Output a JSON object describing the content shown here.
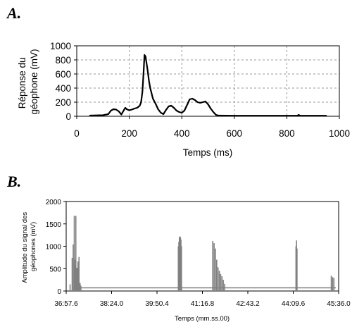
{
  "panels": [
    {
      "label": "A."
    },
    {
      "label": "B."
    }
  ],
  "chart_data": [
    {
      "type": "line",
      "title": "",
      "xlabel": "Temps (ms)",
      "ylabel": "Réponse du géophone (mV)",
      "ylabel_lines": [
        "Réponse du",
        "géophone (mV)"
      ],
      "xlim": [
        0,
        1000
      ],
      "ylim": [
        0,
        1000
      ],
      "xticks": [
        "0",
        "200",
        "400",
        "600",
        "800",
        "1000"
      ],
      "yticks": [
        "0",
        "200",
        "400",
        "600",
        "800",
        "1000"
      ],
      "grid": true,
      "color": "#000000",
      "x": [
        50,
        100,
        120,
        130,
        140,
        150,
        160,
        170,
        180,
        185,
        190,
        200,
        210,
        220,
        230,
        240,
        245,
        250,
        255,
        258,
        262,
        266,
        270,
        275,
        280,
        290,
        300,
        310,
        320,
        330,
        340,
        350,
        360,
        370,
        380,
        390,
        400,
        410,
        420,
        430,
        440,
        450,
        460,
        470,
        480,
        490,
        500,
        510,
        520,
        530,
        540,
        600,
        700,
        800,
        840,
        845,
        850,
        900,
        950
      ],
      "y": [
        10,
        15,
        30,
        80,
        100,
        95,
        70,
        25,
        90,
        120,
        100,
        85,
        95,
        110,
        120,
        150,
        200,
        350,
        650,
        870,
        850,
        750,
        650,
        500,
        400,
        250,
        180,
        100,
        50,
        30,
        90,
        140,
        150,
        120,
        80,
        60,
        50,
        80,
        160,
        240,
        250,
        230,
        200,
        190,
        200,
        210,
        170,
        110,
        60,
        20,
        10,
        8,
        8,
        8,
        8,
        20,
        8,
        8,
        8
      ]
    },
    {
      "type": "bar",
      "title": "",
      "xlabel": "Temps (mm.ss.00)",
      "ylabel": "Amplitude du signal des géophones (mV)",
      "ylabel_lines": [
        "Amplitude du signal des",
        "géophones (mV)"
      ],
      "xlim": [
        "36:57.6",
        "45:36.0"
      ],
      "ylim": [
        0,
        2000
      ],
      "xticks": [
        "36:57.6",
        "38:24.0",
        "39:50.4",
        "41:16.8",
        "42:43.2",
        "44:09.6",
        "45:36.0"
      ],
      "yticks": [
        "0",
        "500",
        "1000",
        "1500",
        "2000"
      ],
      "grid": false,
      "color": "#808080",
      "baseline": 70,
      "x": [
        "37:05.0",
        "37:09.0",
        "37:11.0",
        "37:13.0",
        "37:14.5",
        "37:16.0",
        "37:18.0",
        "37:20.0",
        "37:22.0",
        "37:24.0",
        "37:25.5",
        "40:31.0",
        "40:32.0",
        "40:33.0",
        "40:34.0",
        "40:35.0",
        "40:36.0",
        "40:37.0",
        "41:36.5",
        "41:39.0",
        "41:41.5",
        "41:44.0",
        "41:46.5",
        "41:49.0",
        "41:51.5",
        "41:54.0",
        "41:56.5",
        "41:59.0",
        "44:14.8",
        "44:15.8",
        "44:16.8",
        "45:22.0",
        "45:24.5",
        "45:27.0"
      ],
      "values": [
        150,
        740,
        1040,
        1680,
        700,
        1680,
        520,
        660,
        760,
        180,
        120,
        1000,
        1100,
        1200,
        1220,
        1200,
        1150,
        1000,
        1120,
        1070,
        950,
        700,
        530,
        450,
        380,
        330,
        250,
        160,
        1000,
        1130,
        950,
        340,
        310,
        290
      ]
    }
  ]
}
